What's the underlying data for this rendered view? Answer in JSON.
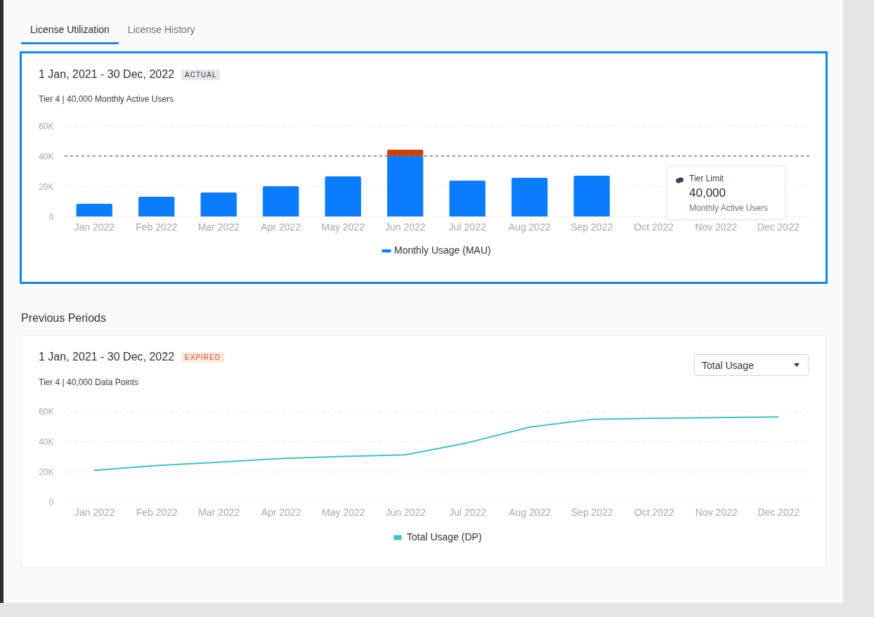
{
  "chart_data": [
    {
      "type": "bar",
      "title": "1 Jan, 2021 - 30 Dec, 2022",
      "subtitle": "Tier 4 | 40,000 Monthly Active Users",
      "annotations": [
        "ACTUAL",
        "License Utilization",
        "License History",
        "40,000",
        "Monthly Active Users"
      ],
      "categories": [
        "Jan 2022",
        "Feb 2022",
        "Mar 2022",
        "Apr 2022",
        "May 2022",
        "Jun 2022",
        "Jul 2022",
        "Aug 2022",
        "Sep 2022",
        "Oct 2022",
        "Nov 2022",
        "Dec 2022"
      ],
      "stacked": true,
      "series": [
        {
          "name": "Monthly Usage (MAU)",
          "color": "#0a7cff",
          "values": [
            8400,
            13000,
            15800,
            20000,
            26500,
            40000,
            23700,
            25600,
            27000,
            null,
            null,
            null
          ]
        },
        {
          "color": "#cc4100",
          "values": [
            null,
            null,
            null,
            null,
            null,
            4200,
            null,
            null,
            null,
            null,
            null,
            null
          ]
        }
      ],
      "ylim": [
        0,
        60000
      ],
      "yticks": [
        {
          "value": 0,
          "label": "0"
        },
        {
          "value": 20000,
          "label": "20K"
        },
        {
          "value": 40000,
          "label": "40K"
        },
        {
          "value": 60000,
          "label": "60K"
        }
      ],
      "grid": "y",
      "legend": "bottom",
      "ref_lines": [
        {
          "axis": "y",
          "value": 40000,
          "label": "Tier Limit",
          "color": "#777777",
          "line_style": "dashed"
        }
      ]
    },
    {
      "type": "line",
      "title": "1 Jan, 2021 - 30 Dec, 2022",
      "subtitle": "Tier 4 | 40,000 Data Points",
      "annotations": [
        "EXPIRED",
        "Previous Periods",
        "Total Usage"
      ],
      "categories": [
        "Jan 2022",
        "Feb 2022",
        "Mar 2022",
        "Apr 2022",
        "May 2022",
        "Jun 2022",
        "Jul 2022",
        "Aug 2022",
        "Sep 2022",
        "Oct 2022",
        "Nov 2022",
        "Dec 2022"
      ],
      "series": [
        {
          "name": "Total Usage (DP)",
          "color": "#3ec3c7",
          "values": [
            20800,
            23900,
            26200,
            28600,
            30000,
            31000,
            39000,
            49400,
            54500,
            55200,
            55700,
            56200
          ]
        }
      ],
      "ylim": [
        0,
        60000
      ],
      "yticks": [
        {
          "value": 0,
          "label": "0"
        },
        {
          "value": 20000,
          "label": "20K"
        },
        {
          "value": 40000,
          "label": "40K"
        },
        {
          "value": 60000,
          "label": "60K"
        }
      ],
      "grid": "y",
      "legend": "bottom"
    }
  ]
}
